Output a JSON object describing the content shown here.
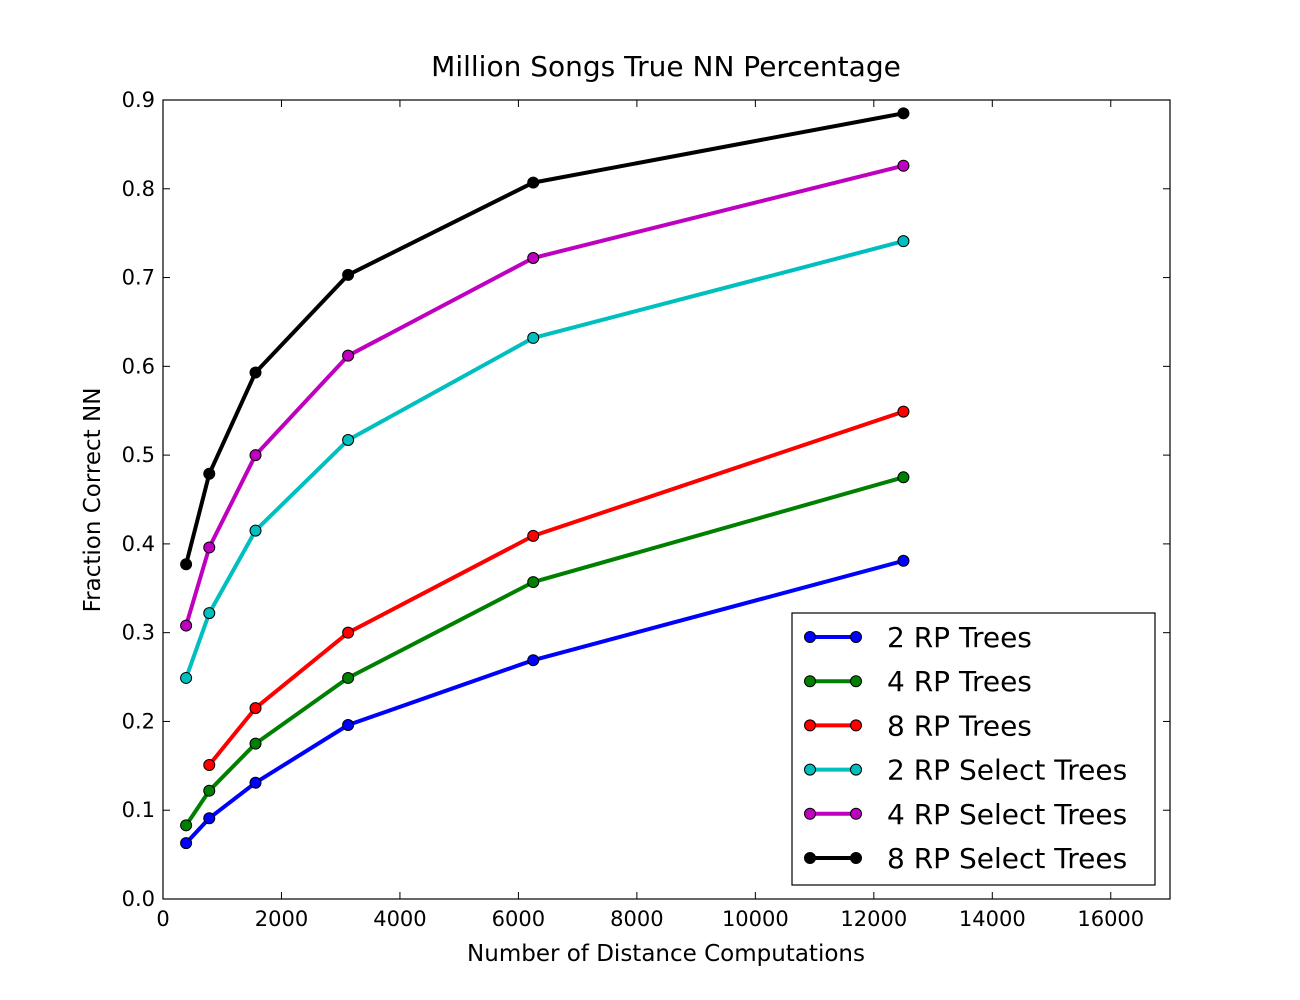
{
  "chart_data": {
    "type": "line",
    "title": "Million Songs True NN Percentage",
    "xlabel": "Number of Distance Computations",
    "ylabel": "Fraction Correct NN",
    "xlim": [
      0,
      17000
    ],
    "ylim": [
      0.0,
      0.9
    ],
    "x_ticks": [
      0,
      2000,
      4000,
      6000,
      8000,
      10000,
      12000,
      14000,
      16000
    ],
    "y_ticks": [
      0.0,
      0.1,
      0.2,
      0.3,
      0.4,
      0.5,
      0.6,
      0.7,
      0.8,
      0.9
    ],
    "grid": false,
    "legend_position": "lower-right",
    "series": [
      {
        "name": "2 RP Trees",
        "color": "#0000ff",
        "x": [
          390,
          781,
          1562,
          3125,
          6250,
          12500
        ],
        "y": [
          0.063,
          0.091,
          0.131,
          0.196,
          0.269,
          0.381
        ]
      },
      {
        "name": "4 RP Trees",
        "color": "#008000",
        "x": [
          390,
          781,
          1562,
          3125,
          6250,
          12500
        ],
        "y": [
          0.083,
          0.122,
          0.175,
          0.249,
          0.357,
          0.475
        ]
      },
      {
        "name": "8 RP Trees",
        "color": "#ff0000",
        "x": [
          781,
          1562,
          3125,
          6250,
          12500
        ],
        "y": [
          0.151,
          0.215,
          0.3,
          0.409,
          0.549
        ]
      },
      {
        "name": "2 RP Select Trees",
        "color": "#00bfbf",
        "x": [
          390,
          781,
          1562,
          3125,
          6250,
          12500
        ],
        "y": [
          0.249,
          0.322,
          0.415,
          0.517,
          0.632,
          0.741
        ]
      },
      {
        "name": "4 RP Select Trees",
        "color": "#bf00bf",
        "x": [
          390,
          781,
          1562,
          3125,
          6250,
          12500
        ],
        "y": [
          0.308,
          0.396,
          0.5,
          0.612,
          0.722,
          0.826
        ]
      },
      {
        "name": "8 RP Select Trees",
        "color": "#000000",
        "x": [
          390,
          781,
          1562,
          3125,
          6250,
          12500
        ],
        "y": [
          0.377,
          0.479,
          0.593,
          0.703,
          0.807,
          0.885
        ]
      }
    ]
  }
}
